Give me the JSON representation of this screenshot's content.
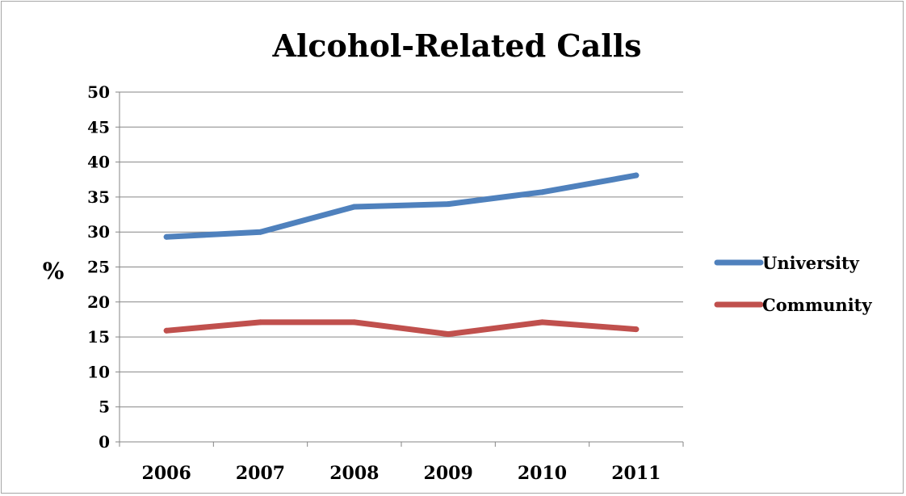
{
  "chart_data": {
    "type": "line",
    "title": "Alcohol-Related Calls",
    "xlabel": "",
    "ylabel": "%",
    "categories": [
      "2006",
      "2007",
      "2008",
      "2009",
      "2010",
      "2011"
    ],
    "ylim": [
      0,
      50
    ],
    "yticks": [
      "0",
      "5",
      "10",
      "15",
      "20",
      "25",
      "30",
      "35",
      "40",
      "45",
      "50"
    ],
    "grid": true,
    "legend_position": "right",
    "series": [
      {
        "name": "University",
        "color": "#4f81bd",
        "values": [
          29.3,
          30.0,
          33.6,
          34.0,
          35.7,
          38.1
        ]
      },
      {
        "name": "Community",
        "color": "#c0504d",
        "values": [
          15.9,
          17.1,
          17.1,
          15.4,
          17.1,
          16.1
        ]
      }
    ]
  }
}
